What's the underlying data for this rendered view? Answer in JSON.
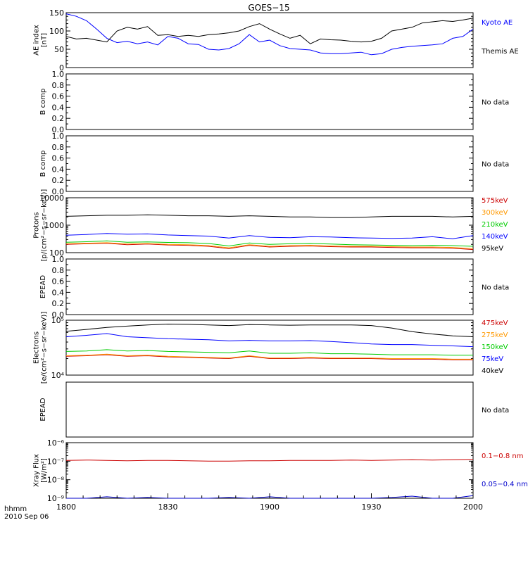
{
  "title": "GOES−15",
  "x_axis": {
    "ticks": [
      {
        "t": 0,
        "label": "1800"
      },
      {
        "t": 30,
        "label": "1830"
      },
      {
        "t": 60,
        "label": "1900"
      },
      {
        "t": 90,
        "label": "1930"
      },
      {
        "t": 120,
        "label": "2000"
      }
    ],
    "corner_label_1": "hhmm",
    "corner_label_2": "2010 Sep 06"
  },
  "chart_data": [
    {
      "type": "line",
      "id": "ae",
      "ylabel_lines": [
        "AE index",
        "[nT]"
      ],
      "ylim": [
        0,
        150
      ],
      "scale": "linear",
      "ticks": [
        {
          "v": 0,
          "label": "0"
        },
        {
          "v": 50,
          "label": "50"
        },
        {
          "v": 100,
          "label": "100"
        },
        {
          "v": 150,
          "label": "150"
        }
      ],
      "minor_ticks": [
        10,
        20,
        30,
        40,
        60,
        70,
        80,
        90,
        110,
        120,
        130,
        140
      ],
      "x": [
        0,
        3,
        6,
        9,
        12,
        15,
        18,
        21,
        24,
        27,
        30,
        33,
        36,
        39,
        42,
        45,
        48,
        51,
        54,
        57,
        60,
        63,
        66,
        69,
        72,
        75,
        78,
        81,
        84,
        87,
        90,
        93,
        96,
        99,
        102,
        105,
        108,
        111,
        114,
        117,
        120
      ],
      "series": [
        {
          "name": "Kyoto AE",
          "color": "#0000ff",
          "values": [
            147,
            140,
            128,
            105,
            80,
            68,
            72,
            65,
            70,
            62,
            85,
            80,
            65,
            63,
            50,
            48,
            52,
            65,
            90,
            70,
            75,
            60,
            52,
            50,
            48,
            40,
            38,
            38,
            40,
            42,
            35,
            38,
            50,
            55,
            58,
            60,
            62,
            65,
            80,
            85,
            105
          ]
        },
        {
          "name": "Themis AE",
          "color": "#000000",
          "values": [
            85,
            78,
            80,
            75,
            70,
            100,
            110,
            105,
            112,
            88,
            90,
            85,
            88,
            85,
            90,
            92,
            95,
            100,
            112,
            120,
            105,
            92,
            80,
            88,
            65,
            78,
            76,
            75,
            72,
            70,
            72,
            80,
            100,
            105,
            110,
            122,
            125,
            128,
            126,
            130,
            135
          ]
        }
      ]
    },
    {
      "type": "line",
      "id": "b1",
      "ylabel_lines": [
        "B comp"
      ],
      "ylim": [
        0,
        1
      ],
      "scale": "linear",
      "ticks": [
        {
          "v": 0,
          "label": "0.0"
        },
        {
          "v": 0.2,
          "label": "0.2"
        },
        {
          "v": 0.4,
          "label": "0.4"
        },
        {
          "v": 0.6,
          "label": "0.6"
        },
        {
          "v": 0.8,
          "label": "0.8"
        },
        {
          "v": 1.0,
          "label": "1.0"
        }
      ],
      "minor_ticks": [
        0.1,
        0.3,
        0.5,
        0.7,
        0.9
      ],
      "series": [],
      "message": "No data"
    },
    {
      "type": "line",
      "id": "b2",
      "ylabel_lines": [
        "B comp"
      ],
      "ylim": [
        0,
        1
      ],
      "scale": "linear",
      "ticks": [
        {
          "v": 0,
          "label": "0.0"
        },
        {
          "v": 0.2,
          "label": "0.2"
        },
        {
          "v": 0.4,
          "label": "0.4"
        },
        {
          "v": 0.6,
          "label": "0.6"
        },
        {
          "v": 0.8,
          "label": "0.8"
        },
        {
          "v": 1.0,
          "label": "1.0"
        }
      ],
      "minor_ticks": [
        0.1,
        0.3,
        0.5,
        0.7,
        0.9
      ],
      "series": [],
      "message": "No data"
    },
    {
      "type": "line",
      "id": "protons",
      "ylabel_lines": [
        "Protons",
        "[p/(cm²−s−sr−keV)]"
      ],
      "ylim": [
        100,
        10000
      ],
      "scale": "log",
      "ticks": [
        {
          "v": 100,
          "label": "100"
        },
        {
          "v": 1000,
          "label": "1000"
        },
        {
          "v": 10000,
          "label": "10000"
        }
      ],
      "x": [
        0,
        6,
        12,
        18,
        24,
        30,
        36,
        42,
        48,
        54,
        60,
        66,
        72,
        78,
        84,
        90,
        96,
        102,
        108,
        114,
        120
      ],
      "series": [
        {
          "name": "575keV",
          "color": "#cc0000",
          "values": [
            200,
            210,
            220,
            195,
            205,
            190,
            185,
            170,
            140,
            185,
            160,
            170,
            175,
            165,
            160,
            160,
            155,
            150,
            150,
            145,
            130
          ]
        },
        {
          "name": "300keV",
          "color": "#ff9900",
          "values": [
            210,
            220,
            230,
            205,
            215,
            200,
            195,
            180,
            150,
            195,
            170,
            180,
            185,
            175,
            170,
            170,
            165,
            160,
            160,
            155,
            140
          ]
        },
        {
          "name": "210keV",
          "color": "#00cc00",
          "values": [
            240,
            250,
            270,
            240,
            245,
            235,
            230,
            215,
            175,
            225,
            200,
            210,
            215,
            205,
            195,
            190,
            185,
            180,
            185,
            180,
            170
          ]
        },
        {
          "name": "140keV",
          "color": "#0000ff",
          "values": [
            430,
            460,
            500,
            470,
            480,
            440,
            420,
            400,
            340,
            420,
            360,
            350,
            380,
            370,
            350,
            340,
            330,
            340,
            380,
            320,
            420
          ]
        },
        {
          "name": "95keV",
          "color": "#000000",
          "values": [
            2100,
            2200,
            2300,
            2300,
            2400,
            2300,
            2200,
            2200,
            2100,
            2200,
            2100,
            2000,
            2000,
            1900,
            1900,
            2000,
            2100,
            2100,
            2100,
            2000,
            2100
          ]
        }
      ]
    },
    {
      "type": "line",
      "id": "epead1",
      "ylabel_lines": [
        "EPEAD"
      ],
      "ylim": [
        0,
        1
      ],
      "scale": "linear",
      "ticks": [
        {
          "v": 0,
          "label": "0.0"
        },
        {
          "v": 0.2,
          "label": "0.2"
        },
        {
          "v": 0.4,
          "label": "0.4"
        },
        {
          "v": 0.6,
          "label": "0.6"
        },
        {
          "v": 0.8,
          "label": "0.8"
        },
        {
          "v": 1.0,
          "label": "1.0"
        }
      ],
      "minor_ticks": [
        0.1,
        0.3,
        0.5,
        0.7,
        0.9
      ],
      "series": [],
      "message": "No data"
    },
    {
      "type": "line",
      "id": "electrons",
      "ylabel_lines": [
        "Electrons",
        "[e/(cm²−s−sr−keV)]"
      ],
      "ylim": [
        10000,
        100000
      ],
      "scale": "log",
      "ticks": [
        {
          "v": 10000,
          "label": "10⁴"
        },
        {
          "v": 100000,
          "label": "10⁵"
        }
      ],
      "x": [
        0,
        6,
        12,
        18,
        24,
        30,
        36,
        42,
        48,
        54,
        60,
        66,
        72,
        78,
        84,
        90,
        96,
        102,
        108,
        114,
        120
      ],
      "series": [
        {
          "name": "475keV",
          "color": "#cc0000",
          "values": [
            22000,
            22500,
            23500,
            22000,
            22500,
            21500,
            21000,
            20500,
            20000,
            22000,
            20000,
            20000,
            20500,
            20000,
            20000,
            20000,
            19500,
            19500,
            19500,
            19000,
            19000
          ]
        },
        {
          "name": "275keV",
          "color": "#ff9900",
          "values": [
            22500,
            23000,
            24000,
            22500,
            23000,
            22000,
            21500,
            21000,
            20500,
            22500,
            20500,
            20500,
            21000,
            20500,
            20500,
            20500,
            20000,
            20000,
            20000,
            19500,
            19500
          ]
        },
        {
          "name": "150keV",
          "color": "#00cc00",
          "values": [
            27000,
            27500,
            29000,
            27500,
            28000,
            27000,
            26500,
            26000,
            25500,
            27500,
            25000,
            25000,
            25500,
            24500,
            24500,
            24000,
            23500,
            23500,
            23500,
            23000,
            23000
          ]
        },
        {
          "name": "75keV",
          "color": "#0000ff",
          "values": [
            50000,
            53000,
            57000,
            50000,
            48000,
            46000,
            45000,
            44000,
            42000,
            43000,
            42000,
            42000,
            42500,
            41000,
            39000,
            37000,
            36000,
            36000,
            35000,
            34000,
            33000
          ]
        },
        {
          "name": "40keV",
          "color": "#000000",
          "values": [
            63000,
            68000,
            74000,
            78000,
            82000,
            85000,
            84000,
            82000,
            80000,
            83000,
            82000,
            81000,
            82000,
            82000,
            82000,
            80000,
            72000,
            62000,
            56000,
            52000,
            50000
          ]
        }
      ]
    },
    {
      "type": "line",
      "id": "epead2",
      "ylabel_lines": [
        "EPEAD"
      ],
      "ylim": [
        0,
        1
      ],
      "scale": "linear",
      "ticks": [],
      "minor_ticks": [],
      "series": [],
      "message": "No data"
    },
    {
      "type": "line",
      "id": "xray",
      "ylabel_lines": [
        "Xray Flux",
        "[W/m²]"
      ],
      "ylim": [
        1e-09,
        1e-06
      ],
      "scale": "log",
      "ticks": [
        {
          "v": 1e-09,
          "label": "10⁻⁹"
        },
        {
          "v": 1e-08,
          "label": "10⁻⁸"
        },
        {
          "v": 1e-07,
          "label": "10⁻⁷"
        },
        {
          "v": 1e-06,
          "label": "10⁻⁶"
        }
      ],
      "x": [
        0,
        6,
        12,
        18,
        24,
        30,
        36,
        42,
        48,
        54,
        60,
        66,
        72,
        78,
        84,
        90,
        96,
        102,
        108,
        114,
        120
      ],
      "series": [
        {
          "name": "0.1−0.8 nm",
          "color": "#cc0000",
          "values": [
            1.1e-07,
            1.15e-07,
            1.1e-07,
            1.05e-07,
            1.1e-07,
            1.1e-07,
            1.05e-07,
            1e-07,
            1e-07,
            1.05e-07,
            1.05e-07,
            1.1e-07,
            1.1e-07,
            1.1e-07,
            1.15e-07,
            1.1e-07,
            1.15e-07,
            1.2e-07,
            1.15e-07,
            1.2e-07,
            1.25e-07
          ]
        },
        {
          "name": "0.05−0.4 nm",
          "color": "#0000cc",
          "values": [
            1e-09,
            1e-09,
            1.2e-09,
            1e-09,
            1.1e-09,
            1e-09,
            1e-09,
            1e-09,
            1.1e-09,
            1e-09,
            1.2e-09,
            1e-09,
            1e-09,
            1e-09,
            1e-09,
            1e-09,
            1.1e-09,
            1.3e-09,
            1e-09,
            1e-09,
            1.4e-09
          ]
        }
      ]
    }
  ]
}
